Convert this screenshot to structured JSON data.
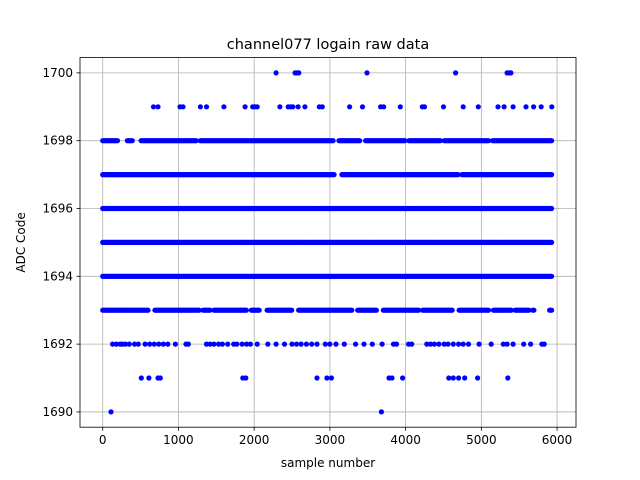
{
  "chart_data": {
    "type": "scatter",
    "title": "channel077 logain raw data",
    "xlabel": "sample number",
    "ylabel": "ADC Code",
    "xlim": [
      -300,
      6250
    ],
    "ylim": [
      1689.55,
      1700.45
    ],
    "xticks": [
      0,
      1000,
      2000,
      3000,
      4000,
      5000,
      6000
    ],
    "yticks": [
      1690,
      1692,
      1694,
      1696,
      1698,
      1700
    ],
    "grid": true,
    "legend": "none",
    "marker_color": "#0000ff",
    "n_samples": 5940,
    "series": [
      {
        "dense_levels": [
          {
            "y": 1698,
            "x_range": [
              0,
              5940
            ],
            "gaps": [
              [
                200,
                320
              ],
              [
                400,
                500
              ],
              [
                1240,
                1280
              ],
              [
                3050,
                3110
              ],
              [
                3400,
                3460
              ],
              [
                4000,
                4040
              ],
              [
                4460,
                4500
              ],
              [
                5100,
                5140
              ]
            ]
          },
          {
            "y": 1697,
            "x_range": [
              0,
              5940
            ],
            "gaps": [
              [
                3060,
                3150
              ],
              [
                4700,
                4740
              ]
            ]
          },
          {
            "y": 1696,
            "x_range": [
              0,
              5940
            ],
            "gaps": []
          },
          {
            "y": 1695,
            "x_range": [
              0,
              5940
            ],
            "gaps": []
          },
          {
            "y": 1694,
            "x_range": [
              0,
              5940
            ],
            "gaps": []
          },
          {
            "y": 1693,
            "x_range": [
              0,
              5940
            ],
            "gaps": [
              [
                600,
                680
              ],
              [
                1280,
                1320
              ],
              [
                1420,
                1460
              ],
              [
                1900,
                1960
              ],
              [
                2080,
                2160
              ],
              [
                2500,
                2580
              ],
              [
                3300,
                3360
              ],
              [
                3620,
                3700
              ],
              [
                4180,
                4220
              ],
              [
                4620,
                4700
              ],
              [
                5100,
                5160
              ],
              [
                5400,
                5440
              ],
              [
                5640,
                5680
              ],
              [
                5700,
                5900
              ]
            ]
          }
        ],
        "points": [
          {
            "x": 2290,
            "y": 1700
          },
          {
            "x": 2540,
            "y": 1700
          },
          {
            "x": 2565,
            "y": 1700
          },
          {
            "x": 2590,
            "y": 1700
          },
          {
            "x": 3490,
            "y": 1700
          },
          {
            "x": 4660,
            "y": 1700
          },
          {
            "x": 5340,
            "y": 1700
          },
          {
            "x": 5365,
            "y": 1700
          },
          {
            "x": 5390,
            "y": 1700
          },
          {
            "x": 670,
            "y": 1699
          },
          {
            "x": 730,
            "y": 1699
          },
          {
            "x": 1020,
            "y": 1699
          },
          {
            "x": 1060,
            "y": 1699
          },
          {
            "x": 1290,
            "y": 1699
          },
          {
            "x": 1370,
            "y": 1699
          },
          {
            "x": 1600,
            "y": 1699
          },
          {
            "x": 1880,
            "y": 1699
          },
          {
            "x": 1980,
            "y": 1699
          },
          {
            "x": 2010,
            "y": 1699
          },
          {
            "x": 2040,
            "y": 1699
          },
          {
            "x": 2340,
            "y": 1699
          },
          {
            "x": 2450,
            "y": 1699
          },
          {
            "x": 2480,
            "y": 1699
          },
          {
            "x": 2510,
            "y": 1699
          },
          {
            "x": 2580,
            "y": 1699
          },
          {
            "x": 2670,
            "y": 1699
          },
          {
            "x": 2860,
            "y": 1699
          },
          {
            "x": 2900,
            "y": 1699
          },
          {
            "x": 3260,
            "y": 1699
          },
          {
            "x": 3430,
            "y": 1699
          },
          {
            "x": 3670,
            "y": 1699
          },
          {
            "x": 3710,
            "y": 1699
          },
          {
            "x": 3930,
            "y": 1699
          },
          {
            "x": 4220,
            "y": 1699
          },
          {
            "x": 4250,
            "y": 1699
          },
          {
            "x": 4500,
            "y": 1699
          },
          {
            "x": 4760,
            "y": 1699
          },
          {
            "x": 4960,
            "y": 1699
          },
          {
            "x": 5220,
            "y": 1699
          },
          {
            "x": 5300,
            "y": 1699
          },
          {
            "x": 5420,
            "y": 1699
          },
          {
            "x": 5590,
            "y": 1699
          },
          {
            "x": 5690,
            "y": 1699
          },
          {
            "x": 5790,
            "y": 1699
          },
          {
            "x": 5930,
            "y": 1699
          },
          {
            "x": 130,
            "y": 1692
          },
          {
            "x": 180,
            "y": 1692
          },
          {
            "x": 230,
            "y": 1692
          },
          {
            "x": 260,
            "y": 1692
          },
          {
            "x": 300,
            "y": 1692
          },
          {
            "x": 350,
            "y": 1692
          },
          {
            "x": 420,
            "y": 1692
          },
          {
            "x": 470,
            "y": 1692
          },
          {
            "x": 560,
            "y": 1692
          },
          {
            "x": 620,
            "y": 1692
          },
          {
            "x": 680,
            "y": 1692
          },
          {
            "x": 740,
            "y": 1692
          },
          {
            "x": 800,
            "y": 1692
          },
          {
            "x": 860,
            "y": 1692
          },
          {
            "x": 960,
            "y": 1692
          },
          {
            "x": 1100,
            "y": 1692
          },
          {
            "x": 1130,
            "y": 1692
          },
          {
            "x": 1370,
            "y": 1692
          },
          {
            "x": 1420,
            "y": 1692
          },
          {
            "x": 1470,
            "y": 1692
          },
          {
            "x": 1530,
            "y": 1692
          },
          {
            "x": 1580,
            "y": 1692
          },
          {
            "x": 1650,
            "y": 1692
          },
          {
            "x": 1730,
            "y": 1692
          },
          {
            "x": 1770,
            "y": 1692
          },
          {
            "x": 1840,
            "y": 1692
          },
          {
            "x": 1900,
            "y": 1692
          },
          {
            "x": 1950,
            "y": 1692
          },
          {
            "x": 2040,
            "y": 1692
          },
          {
            "x": 2180,
            "y": 1692
          },
          {
            "x": 2290,
            "y": 1692
          },
          {
            "x": 2400,
            "y": 1692
          },
          {
            "x": 2500,
            "y": 1692
          },
          {
            "x": 2560,
            "y": 1692
          },
          {
            "x": 2620,
            "y": 1692
          },
          {
            "x": 2690,
            "y": 1692
          },
          {
            "x": 2760,
            "y": 1692
          },
          {
            "x": 2830,
            "y": 1692
          },
          {
            "x": 2940,
            "y": 1692
          },
          {
            "x": 3000,
            "y": 1692
          },
          {
            "x": 3080,
            "y": 1692
          },
          {
            "x": 3190,
            "y": 1692
          },
          {
            "x": 3340,
            "y": 1692
          },
          {
            "x": 3450,
            "y": 1692
          },
          {
            "x": 3560,
            "y": 1692
          },
          {
            "x": 3690,
            "y": 1692
          },
          {
            "x": 3840,
            "y": 1692
          },
          {
            "x": 3880,
            "y": 1692
          },
          {
            "x": 4040,
            "y": 1692
          },
          {
            "x": 4080,
            "y": 1692
          },
          {
            "x": 4280,
            "y": 1692
          },
          {
            "x": 4330,
            "y": 1692
          },
          {
            "x": 4380,
            "y": 1692
          },
          {
            "x": 4440,
            "y": 1692
          },
          {
            "x": 4510,
            "y": 1692
          },
          {
            "x": 4560,
            "y": 1692
          },
          {
            "x": 4630,
            "y": 1692
          },
          {
            "x": 4700,
            "y": 1692
          },
          {
            "x": 4760,
            "y": 1692
          },
          {
            "x": 4830,
            "y": 1692
          },
          {
            "x": 4970,
            "y": 1692
          },
          {
            "x": 5130,
            "y": 1692
          },
          {
            "x": 5290,
            "y": 1692
          },
          {
            "x": 5340,
            "y": 1692
          },
          {
            "x": 5420,
            "y": 1692
          },
          {
            "x": 5560,
            "y": 1692
          },
          {
            "x": 5650,
            "y": 1692
          },
          {
            "x": 5800,
            "y": 1692
          },
          {
            "x": 5830,
            "y": 1692
          },
          {
            "x": 510,
            "y": 1691
          },
          {
            "x": 610,
            "y": 1691
          },
          {
            "x": 730,
            "y": 1691
          },
          {
            "x": 760,
            "y": 1691
          },
          {
            "x": 1850,
            "y": 1691
          },
          {
            "x": 1890,
            "y": 1691
          },
          {
            "x": 2830,
            "y": 1691
          },
          {
            "x": 2960,
            "y": 1691
          },
          {
            "x": 3020,
            "y": 1691
          },
          {
            "x": 3780,
            "y": 1691
          },
          {
            "x": 3820,
            "y": 1691
          },
          {
            "x": 3960,
            "y": 1691
          },
          {
            "x": 4570,
            "y": 1691
          },
          {
            "x": 4630,
            "y": 1691
          },
          {
            "x": 4700,
            "y": 1691
          },
          {
            "x": 4780,
            "y": 1691
          },
          {
            "x": 4950,
            "y": 1691
          },
          {
            "x": 5350,
            "y": 1691
          },
          {
            "x": 110,
            "y": 1690
          },
          {
            "x": 3680,
            "y": 1690
          }
        ]
      }
    ]
  }
}
